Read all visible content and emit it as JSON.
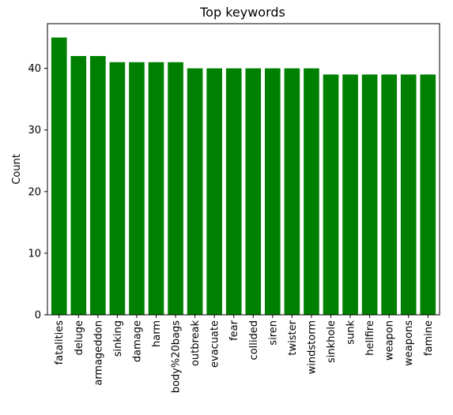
{
  "chart_data": {
    "type": "bar",
    "title": "Top keywords",
    "xlabel": "",
    "ylabel": "Count",
    "ylim": [
      0,
      47.25
    ],
    "yticks": [
      0,
      10,
      20,
      30,
      40
    ],
    "grid": false,
    "bar_color": "#008000",
    "categories": [
      "fatalities",
      "deluge",
      "armageddon",
      "sinking",
      "damage",
      "harm",
      "body%20bags",
      "outbreak",
      "evacuate",
      "fear",
      "collided",
      "siren",
      "twister",
      "windstorm",
      "sinkhole",
      "sunk",
      "hellfire",
      "weapon",
      "weapons",
      "famine"
    ],
    "values": [
      45,
      42,
      42,
      41,
      41,
      41,
      41,
      40,
      40,
      40,
      40,
      40,
      40,
      40,
      39,
      39,
      39,
      39,
      39,
      39
    ]
  }
}
